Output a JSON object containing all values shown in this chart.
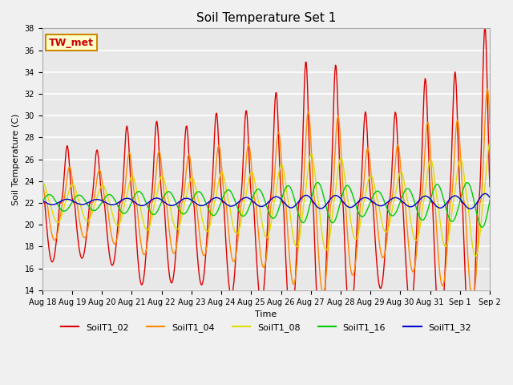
{
  "title": "Soil Temperature Set 1",
  "xlabel": "Time",
  "ylabel": "Soil Temperature (C)",
  "ylim": [
    14,
    38
  ],
  "yticks": [
    14,
    16,
    18,
    20,
    22,
    24,
    26,
    28,
    30,
    32,
    34,
    36,
    38
  ],
  "annotation_text": "TW_met",
  "annotation_color": "#cc0000",
  "annotation_bg": "#ffffcc",
  "annotation_border": "#cc8800",
  "plot_bg_color": "#e8e8e8",
  "grid_color": "#ffffff",
  "series": [
    {
      "label": "SoilT1_02",
      "color": "#dd0000",
      "mean": 22.0,
      "amp": 6.0,
      "phase_delay": 0.0,
      "sharpness": 3.5
    },
    {
      "label": "SoilT1_04",
      "color": "#ff8800",
      "mean": 22.0,
      "amp": 3.8,
      "phase_delay": 0.08,
      "sharpness": 2.5
    },
    {
      "label": "SoilT1_08",
      "color": "#dddd00",
      "mean": 22.0,
      "amp": 2.0,
      "phase_delay": 0.18,
      "sharpness": 1.5
    },
    {
      "label": "SoilT1_16",
      "color": "#00cc00",
      "mean": 22.0,
      "amp": 0.85,
      "phase_delay": 0.4,
      "sharpness": 1.0
    },
    {
      "label": "SoilT1_32",
      "color": "#0000cc",
      "mean": 22.1,
      "amp": 0.28,
      "phase_delay": 1.0,
      "sharpness": 1.0
    }
  ],
  "xtick_labels": [
    "Aug 18",
    "Aug 19",
    "Aug 20",
    "Aug 21",
    "Aug 22",
    "Aug 23",
    "Aug 24",
    "Aug 25",
    "Aug 26",
    "Aug 27",
    "Aug 28",
    "Aug 29",
    "Aug 30",
    "Aug 31",
    "Sep 1",
    "Sep 2"
  ],
  "title_fontsize": 11,
  "label_fontsize": 8,
  "tick_fontsize": 7,
  "legend_fontsize": 8,
  "linewidth": 1.0
}
